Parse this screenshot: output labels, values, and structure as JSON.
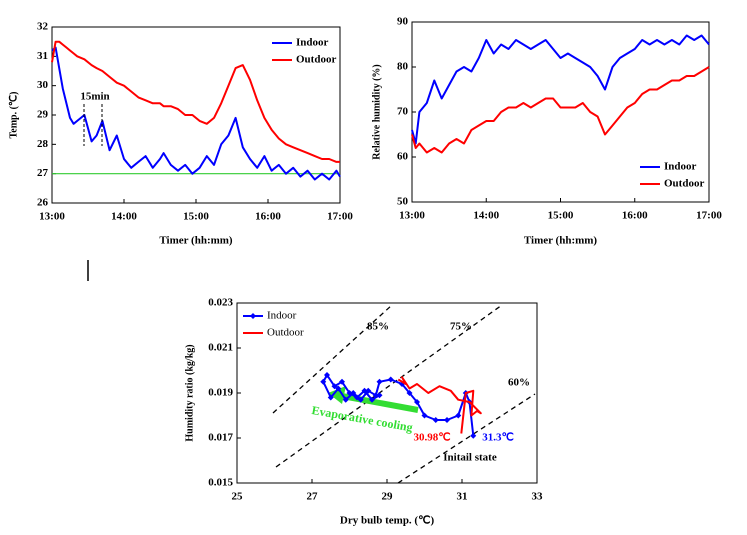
{
  "chart_data": [
    {
      "type": "line",
      "ylabel": "Temp. (℃)",
      "xlabel": "Timer (hh:mm)",
      "xlim": [
        13,
        17
      ],
      "xticks": [
        {
          "value": 13,
          "label": "13:00"
        },
        {
          "value": 14,
          "label": "14:00"
        },
        {
          "value": 15,
          "label": "15:00"
        },
        {
          "value": 16,
          "label": "16:00"
        },
        {
          "value": 17,
          "label": "17:00"
        }
      ],
      "ylim": [
        26,
        32
      ],
      "yticks": [
        26,
        27,
        28,
        29,
        30,
        31,
        32
      ],
      "legend": "upper right",
      "reference_line": {
        "value": 27,
        "color": "#33cc33"
      },
      "annotations": [
        "15min"
      ],
      "x": [
        13,
        13.05,
        13.1,
        13.15,
        13.2,
        13.25,
        13.3,
        13.35,
        13.45,
        13.55,
        13.62,
        13.7,
        13.8,
        13.9,
        14.0,
        14.1,
        14.2,
        14.3,
        14.4,
        14.5,
        14.55,
        14.65,
        14.75,
        14.85,
        14.95,
        15.05,
        15.15,
        15.25,
        15.35,
        15.45,
        15.55,
        15.65,
        15.75,
        15.85,
        15.95,
        16.05,
        16.15,
        16.25,
        16.35,
        16.45,
        16.55,
        16.65,
        16.75,
        16.85,
        16.95,
        17.0
      ],
      "series": [
        {
          "name": "Indoor",
          "color": "#0000ff",
          "values": [
            31.2,
            31.3,
            30.6,
            29.9,
            29.4,
            28.9,
            28.7,
            28.8,
            29.0,
            28.1,
            28.3,
            28.8,
            27.8,
            28.3,
            27.5,
            27.2,
            27.4,
            27.6,
            27.2,
            27.5,
            27.7,
            27.3,
            27.1,
            27.3,
            27.0,
            27.2,
            27.6,
            27.3,
            28.0,
            28.3,
            28.9,
            27.9,
            27.5,
            27.2,
            27.6,
            27.1,
            27.3,
            27.0,
            27.2,
            26.9,
            27.1,
            26.8,
            27.0,
            26.8,
            27.1,
            26.9
          ]
        },
        {
          "name": "Outdoor",
          "color": "#ff0000",
          "values": [
            30.8,
            31.5,
            31.5,
            31.4,
            31.3,
            31.2,
            31.1,
            31.0,
            30.9,
            30.7,
            30.6,
            30.5,
            30.3,
            30.1,
            30.0,
            29.8,
            29.6,
            29.5,
            29.4,
            29.4,
            29.3,
            29.3,
            29.2,
            29.0,
            29.0,
            28.8,
            28.7,
            28.9,
            29.4,
            30.0,
            30.6,
            30.7,
            30.2,
            29.5,
            28.9,
            28.5,
            28.2,
            28.0,
            27.9,
            27.8,
            27.7,
            27.6,
            27.5,
            27.5,
            27.4,
            27.4
          ]
        }
      ]
    },
    {
      "type": "line",
      "ylabel": "Relative humidity (%)",
      "xlabel": "Timer (hh:mm)",
      "xlim": [
        13,
        17
      ],
      "xticks": [
        {
          "value": 13,
          "label": "13:00"
        },
        {
          "value": 14,
          "label": "14:00"
        },
        {
          "value": 15,
          "label": "15:00"
        },
        {
          "value": 16,
          "label": "16:00"
        },
        {
          "value": 17,
          "label": "17:00"
        }
      ],
      "ylim": [
        50,
        90
      ],
      "yticks": [
        50,
        60,
        70,
        80,
        90
      ],
      "legend": "lower right",
      "x": [
        13,
        13.05,
        13.1,
        13.2,
        13.3,
        13.4,
        13.5,
        13.6,
        13.7,
        13.8,
        13.9,
        14.0,
        14.1,
        14.2,
        14.3,
        14.4,
        14.5,
        14.6,
        14.7,
        14.8,
        14.9,
        15.0,
        15.1,
        15.2,
        15.3,
        15.4,
        15.5,
        15.6,
        15.7,
        15.8,
        15.9,
        16.0,
        16.1,
        16.2,
        16.3,
        16.4,
        16.5,
        16.6,
        16.7,
        16.8,
        16.9,
        17.0
      ],
      "series": [
        {
          "name": "Indoor",
          "color": "#0000ff",
          "values": [
            66,
            63,
            70,
            72,
            77,
            73,
            76,
            79,
            80,
            79,
            82,
            86,
            83,
            85,
            84,
            86,
            85,
            84,
            85,
            86,
            84,
            82,
            83,
            82,
            81,
            80,
            78,
            75,
            80,
            82,
            83,
            84,
            86,
            85,
            86,
            85,
            86,
            85,
            87,
            86,
            87,
            85
          ]
        },
        {
          "name": "Outdoor",
          "color": "#ff0000",
          "values": [
            65,
            62,
            63,
            61,
            62,
            61,
            63,
            64,
            63,
            66,
            67,
            68,
            68,
            70,
            71,
            71,
            72,
            71,
            72,
            73,
            73,
            71,
            71,
            71,
            72,
            70,
            69,
            65,
            67,
            69,
            71,
            72,
            74,
            75,
            75,
            76,
            77,
            77,
            78,
            78,
            79,
            80
          ]
        }
      ]
    },
    {
      "type": "line",
      "ylabel": "Humidity ratio (kg/kg)",
      "xlabel": "Dry bulb temp. (℃)",
      "xlim": [
        25,
        33
      ],
      "xticks": [
        25,
        27,
        29,
        31,
        33
      ],
      "ylim": [
        0.015,
        0.023
      ],
      "yticks": [
        0.015,
        0.017,
        0.019,
        0.021,
        0.023
      ],
      "legend": "upper left",
      "annotations": [
        "85%",
        "75%",
        "60%",
        "Evaporative cooling",
        "30.98℃",
        "31.3℃",
        "Initail state"
      ],
      "series": [
        {
          "name": "Indoor",
          "color": "#0000ff",
          "markers": true,
          "x": [
            31.3,
            31.2,
            31.1,
            30.9,
            30.6,
            30.3,
            30.0,
            29.8,
            29.6,
            29.4,
            29.1,
            28.8,
            28.7,
            28.5,
            28.3,
            28.1,
            27.9,
            27.7,
            27.5,
            27.3,
            27.4,
            27.6,
            27.8,
            28.0,
            28.2,
            28.4,
            28.6,
            28.8
          ],
          "values": [
            0.0171,
            0.0186,
            0.019,
            0.018,
            0.0178,
            0.0178,
            0.018,
            0.0186,
            0.019,
            0.0194,
            0.0196,
            0.0195,
            0.0189,
            0.0191,
            0.0187,
            0.019,
            0.0187,
            0.0192,
            0.0188,
            0.0195,
            0.0198,
            0.0193,
            0.0195,
            0.019,
            0.0188,
            0.0191,
            0.0187,
            0.0189
          ]
        },
        {
          "name": "Outdoor",
          "color": "#ff0000",
          "x": [
            30.98,
            31.1,
            31.3,
            31.25,
            31.4,
            31.5,
            31.2,
            30.9,
            30.7,
            30.4,
            30.1,
            29.8,
            29.6,
            29.4,
            29.5,
            29.3
          ],
          "values": [
            0.0172,
            0.019,
            0.0191,
            0.018,
            0.0182,
            0.0181,
            0.0186,
            0.0187,
            0.0191,
            0.0193,
            0.019,
            0.0194,
            0.0192,
            0.0197,
            0.0194,
            0.0196
          ]
        }
      ]
    }
  ]
}
